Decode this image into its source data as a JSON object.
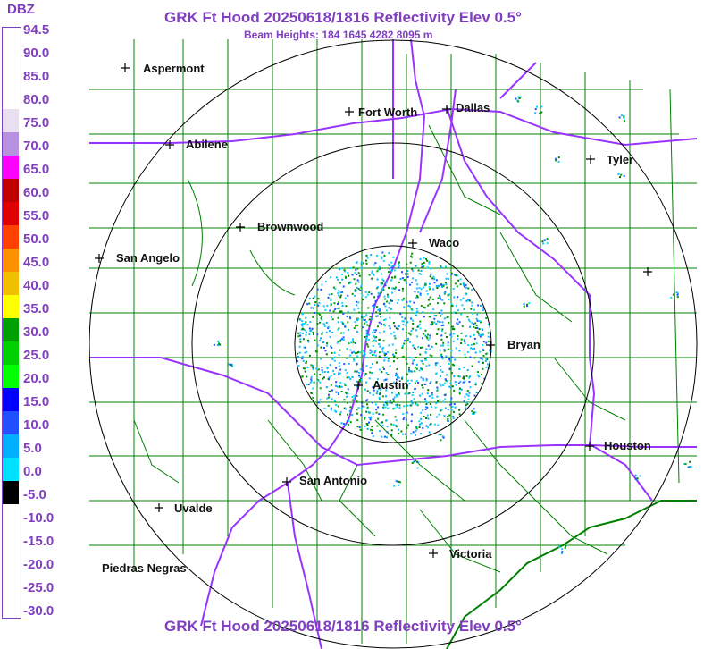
{
  "legend": {
    "title": "DBZ",
    "labels": [
      "94.5",
      "90.0",
      "85.0",
      "80.0",
      "75.0",
      "70.0",
      "65.0",
      "60.0",
      "55.0",
      "50.0",
      "45.0",
      "40.0",
      "35.0",
      "30.0",
      "25.0",
      "20.0",
      "15.0",
      "10.0",
      "5.0",
      "0.0",
      "-5.0",
      "-10.0",
      "-15.0",
      "-20.0",
      "-25.0",
      "-30.0"
    ],
    "colors": [
      "#ffffff",
      "#ffffff",
      "#ffffff",
      "#ffffff",
      "#e8e0f0",
      "#b890e0",
      "#ff00ff",
      "#c00000",
      "#e00000",
      "#ff4000",
      "#ff9000",
      "#f0c000",
      "#ffff00",
      "#00a000",
      "#00d000",
      "#00ff00",
      "#0000ff",
      "#2050ff",
      "#00b0ff",
      "#00e0ff",
      "#000000",
      "#ffffff",
      "#ffffff",
      "#ffffff",
      "#ffffff",
      "#ffffff"
    ]
  },
  "header": {
    "title": "GRK Ft Hood 20250618/1816 Reflectivity Elev 0.5°",
    "beam_heights": "Beam Heights: 184 1645 4282 8095 m"
  },
  "footer": {
    "title": "GRK Ft Hood 20250618/1816 Reflectivity Elev 0.5°"
  },
  "map": {
    "line_colors": {
      "county": "#008000",
      "highway": "#9933ff",
      "range_ring": "#000000"
    },
    "cities": [
      {
        "name": "Aspermont"
      },
      {
        "name": "Fort Worth"
      },
      {
        "name": "Dallas"
      },
      {
        "name": "Abilene"
      },
      {
        "name": "Tyler"
      },
      {
        "name": "Brownwood"
      },
      {
        "name": "Waco"
      },
      {
        "name": "San Angelo"
      },
      {
        "name": "Bryan"
      },
      {
        "name": "Austin"
      },
      {
        "name": "Houston"
      },
      {
        "name": "San Antonio"
      },
      {
        "name": "Uvalde"
      },
      {
        "name": "Victoria"
      },
      {
        "name": "Piedras Negras"
      },
      {
        "name": ""
      }
    ]
  }
}
